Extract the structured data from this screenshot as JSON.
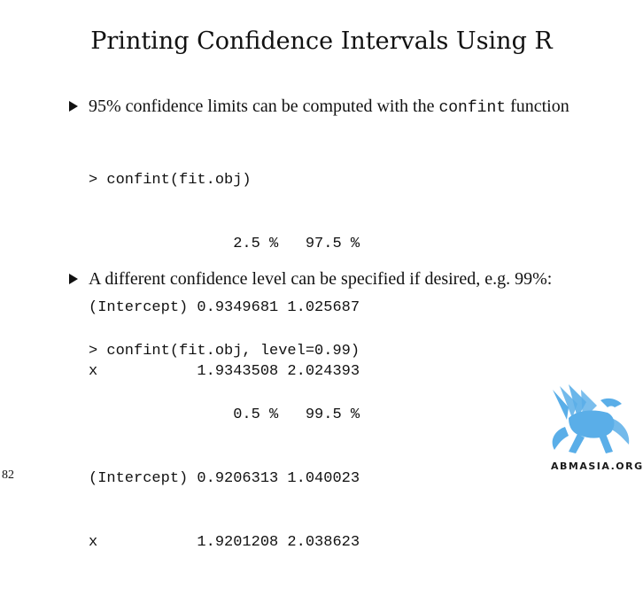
{
  "slide": {
    "title": "Printing Confidence Intervals Using R",
    "page_number": "82"
  },
  "bullets": [
    {
      "text_before": "95% confidence limits can be computed with the ",
      "inline_code": "confint",
      "text_after": " function",
      "code_lines": [
        "> confint(fit.obj)",
        "                2.5 %   97.5 %",
        "(Intercept) 0.9349681 1.025687",
        "x           1.9343508 2.024393"
      ]
    },
    {
      "text": "A different confidence level can be specified if desired, e.g. 99%:",
      "code_lines": [
        "> confint(fit.obj, level=0.99)",
        "                0.5 %   99.5 %",
        "(Intercept) 0.9206313 1.040023",
        "x           1.9201208 2.038623"
      ]
    }
  ],
  "logo": {
    "text": "ABMASIA.ORG",
    "color": "#5aaee8",
    "icon": "griffin-logo-icon"
  }
}
